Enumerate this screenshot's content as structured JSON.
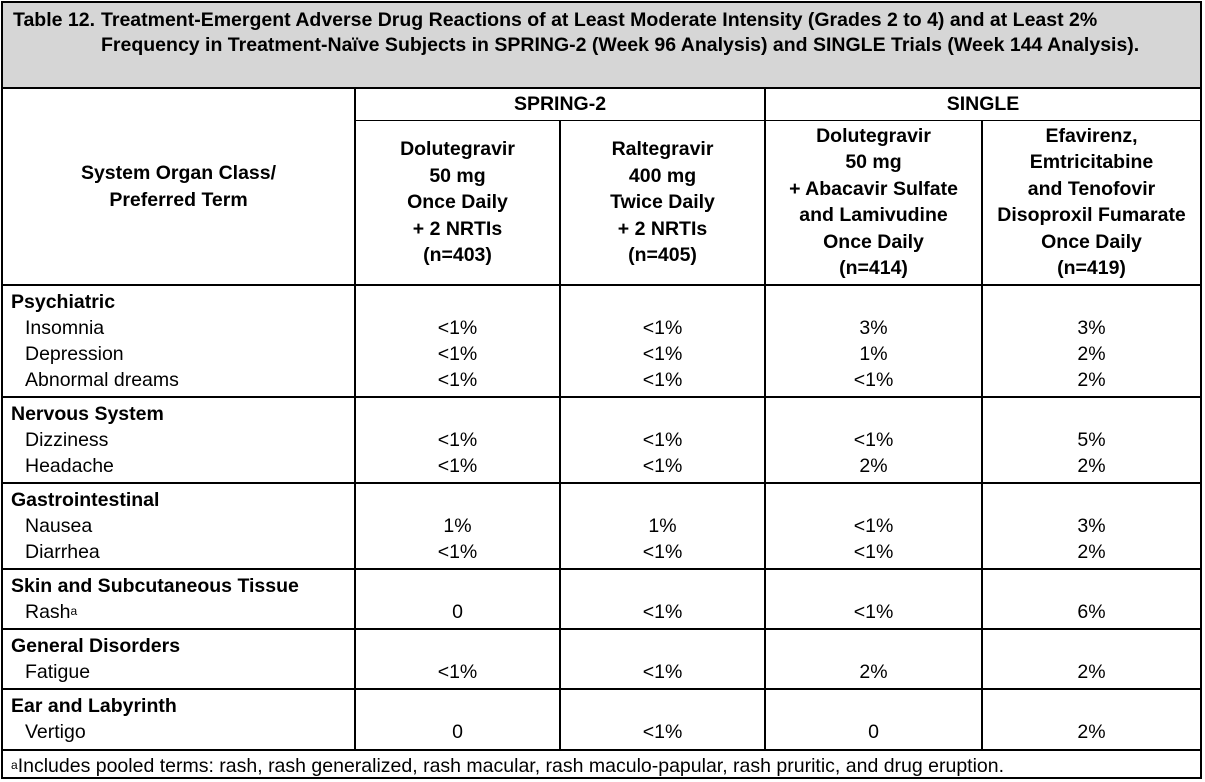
{
  "table": {
    "label": "Table 12.",
    "title": "Treatment-Emergent Adverse Drug Reactions of at Least Moderate Intensity (Grades 2 to 4) and at Least 2% Frequency in Treatment-Naïve Subjects in SPRING-2 (Week 96 Analysis) and SINGLE Trials (Week 144 Analysis).",
    "row_header": [
      "System Organ Class/",
      "Preferred Term"
    ],
    "groups": [
      "SPRING-2",
      "SINGLE"
    ],
    "columns": [
      [
        "Dolutegravir",
        "50 mg",
        "Once Daily",
        "+ 2 NRTIs",
        "(n=403)"
      ],
      [
        "Raltegravir",
        "400 mg",
        "Twice Daily",
        "+ 2 NRTIs",
        "(n=405)"
      ],
      [
        "Dolutegravir",
        "50 mg",
        "+ Abacavir Sulfate",
        "and Lamivudine",
        "Once Daily",
        "(n=414)"
      ],
      [
        "Efavirenz,",
        "Emtricitabine",
        "and Tenofovir",
        "Disoproxil Fumarate",
        "Once Daily",
        "(n=419)"
      ]
    ],
    "sections": [
      {
        "soc": "Psychiatric",
        "rows": [
          {
            "term": "Insomnia",
            "values": [
              "<1%",
              "<1%",
              "3%",
              "3%"
            ]
          },
          {
            "term": "Depression",
            "values": [
              "<1%",
              "<1%",
              "1%",
              "2%"
            ]
          },
          {
            "term": "Abnormal dreams",
            "values": [
              "<1%",
              "<1%",
              "<1%",
              "2%"
            ]
          }
        ]
      },
      {
        "soc": "Nervous System",
        "rows": [
          {
            "term": "Dizziness",
            "values": [
              "<1%",
              "<1%",
              "<1%",
              "5%"
            ]
          },
          {
            "term": "Headache",
            "values": [
              "<1%",
              "<1%",
              "2%",
              "2%"
            ]
          }
        ]
      },
      {
        "soc": "Gastrointestinal",
        "rows": [
          {
            "term": "Nausea",
            "values": [
              "1%",
              "1%",
              "<1%",
              "3%"
            ]
          },
          {
            "term": "Diarrhea",
            "values": [
              "<1%",
              "<1%",
              "<1%",
              "2%"
            ]
          }
        ]
      },
      {
        "soc": "Skin and Subcutaneous Tissue",
        "rows": [
          {
            "term": "Rash",
            "sup": "a",
            "values": [
              "0",
              "<1%",
              "<1%",
              "6%"
            ]
          }
        ]
      },
      {
        "soc": "General Disorders",
        "rows": [
          {
            "term": "Fatigue",
            "values": [
              "<1%",
              "<1%",
              "2%",
              "2%"
            ]
          }
        ]
      },
      {
        "soc": "Ear and Labyrinth",
        "rows": [
          {
            "term": "Vertigo",
            "values": [
              "0",
              "<1%",
              "0",
              "2%"
            ]
          }
        ]
      }
    ],
    "footnote": {
      "marker": "a",
      "text": "Includes pooled terms: rash, rash generalized, rash macular, rash maculo-papular, rash pruritic, and drug eruption."
    }
  }
}
